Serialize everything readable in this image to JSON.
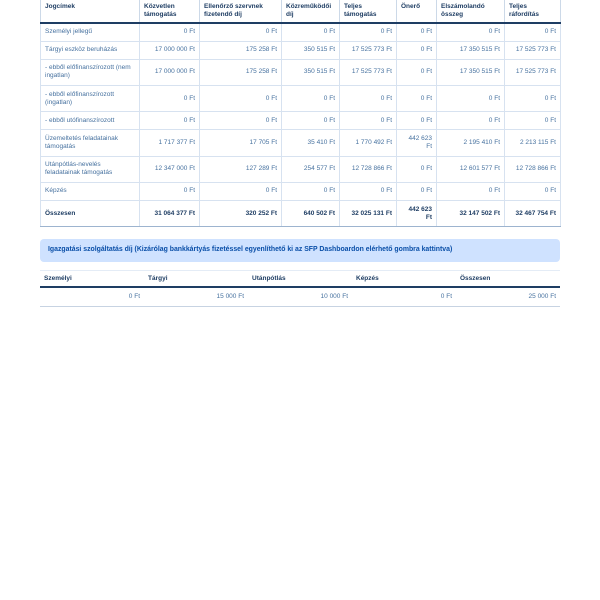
{
  "main_table": {
    "columns": [
      "Jogcímek",
      "Közvetlen támogatás",
      "Ellenőrző szervnek fizetendő díj",
      "Közreműködői díj",
      "Teljes támogatás",
      "Önerő",
      "Elszámolandó összeg",
      "Teljes ráfordítás"
    ],
    "rows": [
      {
        "label": "Személyi jellegű",
        "bold": false,
        "values": [
          "0 Ft",
          "0 Ft",
          "0 Ft",
          "0 Ft",
          "0 Ft",
          "0 Ft",
          "0 Ft"
        ]
      },
      {
        "label": "Tárgyi eszköz beruházás",
        "bold": false,
        "values": [
          "17 000 000 Ft",
          "175 258 Ft",
          "350 515 Ft",
          "17 525 773 Ft",
          "0 Ft",
          "17 350 515 Ft",
          "17 525 773 Ft"
        ]
      },
      {
        "label": "- ebből előfinanszírozott (nem ingatlan)",
        "bold": false,
        "values": [
          "17 000 000 Ft",
          "175 258 Ft",
          "350 515 Ft",
          "17 525 773 Ft",
          "0 Ft",
          "17 350 515 Ft",
          "17 525 773 Ft"
        ]
      },
      {
        "label": "- ebből előfinanszírozott (ingatlan)",
        "bold": false,
        "values": [
          "0 Ft",
          "0 Ft",
          "0 Ft",
          "0 Ft",
          "0 Ft",
          "0 Ft",
          "0 Ft"
        ]
      },
      {
        "label": "- ebből utófinanszírozott",
        "bold": false,
        "values": [
          "0 Ft",
          "0 Ft",
          "0 Ft",
          "0 Ft",
          "0 Ft",
          "0 Ft",
          "0 Ft"
        ]
      },
      {
        "label": "Üzemeltetés feladatainak támogatás",
        "bold": false,
        "values": [
          "1 717 377 Ft",
          "17 705 Ft",
          "35 410 Ft",
          "1 770 492 Ft",
          "442 623 Ft",
          "2 195 410 Ft",
          "2 213 115 Ft"
        ]
      },
      {
        "label": "Utánpótlás-nevelés feladatainak támogatás",
        "bold": false,
        "values": [
          "12 347 000 Ft",
          "127 289 Ft",
          "254 577 Ft",
          "12 728 866 Ft",
          "0 Ft",
          "12 601 577 Ft",
          "12 728 866 Ft"
        ]
      },
      {
        "label": "Képzés",
        "bold": false,
        "values": [
          "0 Ft",
          "0 Ft",
          "0 Ft",
          "0 Ft",
          "0 Ft",
          "0 Ft",
          "0 Ft"
        ]
      },
      {
        "label": "Összesen",
        "bold": true,
        "values": [
          "31 064 377 Ft",
          "320 252 Ft",
          "640 502 Ft",
          "32 025 131 Ft",
          "442 623 Ft",
          "32 147 502 Ft",
          "32 467 754 Ft"
        ]
      }
    ]
  },
  "banner": {
    "text": "Igazgatási szolgáltatás díj (Kizárólag bankkártyás fizetéssel egyenlíthető ki az SFP Dashboardon elérhető gombra kattintva)",
    "bg_color": "#cfe2ff",
    "text_color": "#0a4fa8"
  },
  "fee_table": {
    "columns": [
      "Személyi",
      "Tárgyi",
      "Utánpótlás",
      "Képzés",
      "Összesen"
    ],
    "values": [
      "0 Ft",
      "15 000 Ft",
      "10 000 Ft",
      "0 Ft",
      "25 000 Ft"
    ]
  },
  "colors": {
    "heading_text": "#1e3d63",
    "body_text": "#46719f",
    "grid_border": "#d7e2f0",
    "strong_border": "#1e3d63"
  }
}
